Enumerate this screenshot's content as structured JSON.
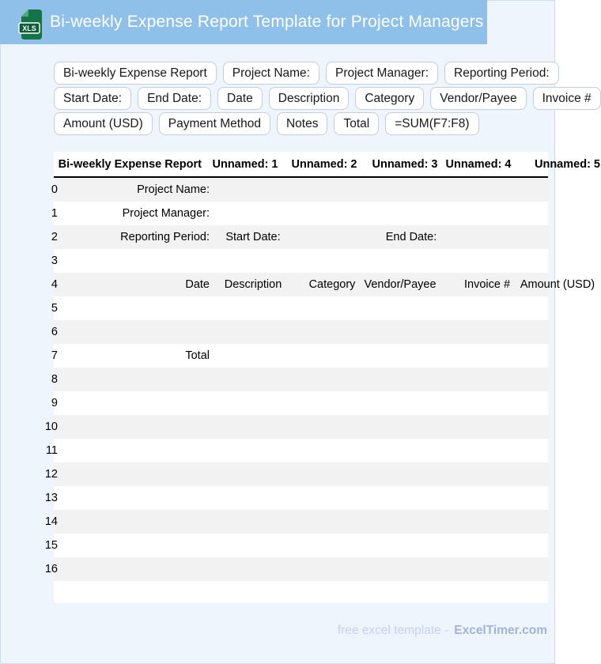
{
  "header": {
    "title": "Bi-weekly Expense Report Template for Project Managers",
    "file_icon_label": "XLS"
  },
  "chips": {
    "rows": [
      [
        "Bi-weekly Expense Report",
        "Project Name:",
        "Project Manager:",
        "Reporting Period:"
      ],
      [
        "Start Date:",
        "End Date:",
        "Date",
        "Description",
        "Category",
        "Vendor/Payee",
        "Invoice #"
      ],
      [
        "Amount (USD)",
        "Payment Method",
        "Notes",
        "Total",
        "=SUM(F7:F8)"
      ]
    ]
  },
  "table": {
    "columns": [
      {
        "cls": "h-c1",
        "ctr": false,
        "label": "Bi-weekly Expense Report"
      },
      {
        "cls": "h-c2",
        "ctr": true,
        "label": "Unnamed: 1"
      },
      {
        "cls": "h-c3",
        "ctr": true,
        "label": "Unnamed: 2"
      },
      {
        "cls": "h-c4",
        "ctr": true,
        "label": "Unnamed: 3"
      },
      {
        "cls": "h-c5",
        "ctr": true,
        "label": "Unnamed: 4"
      },
      {
        "cls": "h-c6",
        "ctr": false,
        "label": "Unnamed: 5"
      }
    ],
    "rows": [
      {
        "idx": "0",
        "cells": {
          "c1": "Project Name:"
        }
      },
      {
        "idx": "1",
        "cells": {
          "c1": "Project Manager:"
        }
      },
      {
        "idx": "2",
        "cells": {
          "c1": "Reporting Period:",
          "c2": "Start Date:",
          "c4e": "End Date:"
        }
      },
      {
        "idx": "3",
        "cells": {}
      },
      {
        "idx": "4",
        "cells": {
          "c1": "Date",
          "c2": "Description",
          "c3": "Category",
          "c4": "Vendor/Payee",
          "c5": "Invoice #",
          "c6": "Amount (USD)"
        }
      },
      {
        "idx": "5",
        "cells": {}
      },
      {
        "idx": "6",
        "cells": {}
      },
      {
        "idx": "7",
        "cells": {
          "c1": "Total"
        }
      },
      {
        "idx": "8",
        "cells": {}
      },
      {
        "idx": "9",
        "cells": {}
      },
      {
        "idx": "10",
        "cells": {}
      },
      {
        "idx": "11",
        "cells": {}
      },
      {
        "idx": "12",
        "cells": {}
      },
      {
        "idx": "13",
        "cells": {}
      },
      {
        "idx": "14",
        "cells": {}
      },
      {
        "idx": "15",
        "cells": {}
      },
      {
        "idx": "16",
        "cells": {}
      }
    ]
  },
  "footer": {
    "tagline": "free excel template -",
    "brand": "ExcelTimer.com"
  },
  "colors": {
    "header_bar": "#8fc0e9",
    "page_bg": "#eef5fc",
    "stripe": "#f2f2f2",
    "icon_green": "#157347",
    "icon_fold": "#54a877",
    "footer_light": "#c7d1ee",
    "footer_brand": "#a4b1d9"
  }
}
